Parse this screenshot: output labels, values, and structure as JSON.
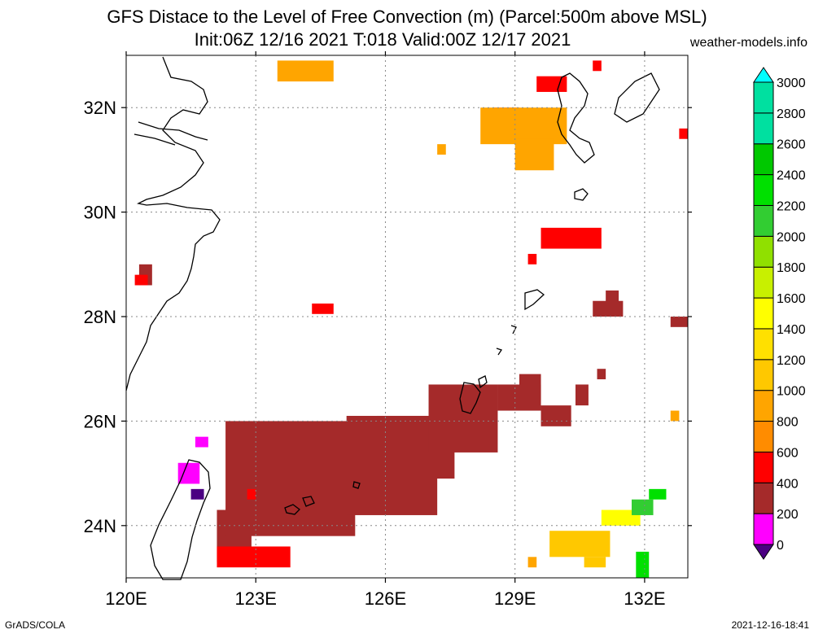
{
  "header": {
    "title": "GFS Distace to the Level of Free Convection (m) (Parcel:500m above MSL)",
    "subtitle": "Init:06Z 12/16 2021 T:018 Valid:00Z 12/17 2021",
    "site": "weather-models.info"
  },
  "footer": {
    "left": "GrADS/COLA",
    "right": "2021-12-16-18:41"
  },
  "map": {
    "lon_range": [
      120,
      133
    ],
    "lat_range": [
      23,
      33
    ],
    "lon_ticks": [
      {
        "value": 120,
        "label": "120E"
      },
      {
        "value": 123,
        "label": "123E"
      },
      {
        "value": 126,
        "label": "126E"
      },
      {
        "value": 129,
        "label": "129E"
      },
      {
        "value": 132,
        "label": "132E"
      }
    ],
    "lat_ticks": [
      {
        "value": 24,
        "label": "24N"
      },
      {
        "value": 26,
        "label": "26N"
      },
      {
        "value": 28,
        "label": "28N"
      },
      {
        "value": 30,
        "label": "30N"
      },
      {
        "value": 32,
        "label": "32N"
      }
    ],
    "grid": true
  },
  "colorbar": {
    "levels": [
      {
        "label": "0",
        "color": "#4b0082"
      },
      {
        "label": "200",
        "color": "#ff00ff"
      },
      {
        "label": "400",
        "color": "#a52a2a"
      },
      {
        "label": "600",
        "color": "#ff0000"
      },
      {
        "label": "800",
        "color": "#ff8c00"
      },
      {
        "label": "1000",
        "color": "#ffa500"
      },
      {
        "label": "1200",
        "color": "#ffc800"
      },
      {
        "label": "1400",
        "color": "#ffe000"
      },
      {
        "label": "1600",
        "color": "#ffff00"
      },
      {
        "label": "1800",
        "color": "#c8f000"
      },
      {
        "label": "2000",
        "color": "#90e000"
      },
      {
        "label": "2200",
        "color": "#32cd32"
      },
      {
        "label": "2400",
        "color": "#00e000"
      },
      {
        "label": "2600",
        "color": "#00c800"
      },
      {
        "label": "2800",
        "color": "#00e0a0"
      },
      {
        "label": "3000",
        "color": "#00ffff"
      }
    ]
  },
  "field_regions": [
    {
      "level": "400",
      "lon": [
        122.1,
        122.9
      ],
      "lat": [
        23.3,
        24.3
      ]
    },
    {
      "level": "400",
      "lon": [
        122.3,
        125.3
      ],
      "lat": [
        23.8,
        26.0
      ]
    },
    {
      "level": "400",
      "lon": [
        125.1,
        127.2
      ],
      "lat": [
        24.2,
        26.1
      ]
    },
    {
      "level": "400",
      "lon": [
        125.8,
        127.6
      ],
      "lat": [
        24.9,
        26.1
      ]
    },
    {
      "level": "400",
      "lon": [
        127.0,
        128.6
      ],
      "lat": [
        25.4,
        26.7
      ]
    },
    {
      "level": "400",
      "lon": [
        128.6,
        129.6
      ],
      "lat": [
        26.2,
        26.7
      ]
    },
    {
      "level": "400",
      "lon": [
        129.1,
        129.6
      ],
      "lat": [
        26.4,
        26.9
      ]
    },
    {
      "level": "400",
      "lon": [
        129.6,
        130.3
      ],
      "lat": [
        25.9,
        26.3
      ]
    },
    {
      "level": "400",
      "lon": [
        130.4,
        130.7
      ],
      "lat": [
        26.3,
        26.7
      ]
    },
    {
      "level": "400",
      "lon": [
        130.9,
        131.1
      ],
      "lat": [
        26.8,
        27.0
      ]
    },
    {
      "level": "400",
      "lon": [
        130.8,
        131.5
      ],
      "lat": [
        28.0,
        28.3
      ]
    },
    {
      "level": "400",
      "lon": [
        131.1,
        131.4
      ],
      "lat": [
        28.2,
        28.5
      ]
    },
    {
      "level": "400",
      "lon": [
        132.6,
        133.0
      ],
      "lat": [
        27.8,
        28.0
      ]
    },
    {
      "level": "400",
      "lon": [
        120.3,
        120.6
      ],
      "lat": [
        28.6,
        29.0
      ]
    },
    {
      "level": "600",
      "lon": [
        120.2,
        120.5
      ],
      "lat": [
        28.6,
        28.8
      ]
    },
    {
      "level": "600",
      "lon": [
        124.3,
        124.8
      ],
      "lat": [
        28.05,
        28.25
      ]
    },
    {
      "level": "600",
      "lon": [
        129.3,
        129.5
      ],
      "lat": [
        29.0,
        29.2
      ]
    },
    {
      "level": "600",
      "lon": [
        129.6,
        131.0
      ],
      "lat": [
        29.3,
        29.7
      ]
    },
    {
      "level": "600",
      "lon": [
        122.1,
        123.8
      ],
      "lat": [
        23.2,
        23.6
      ]
    },
    {
      "level": "600",
      "lon": [
        122.8,
        123.0
      ],
      "lat": [
        24.5,
        24.7
      ]
    },
    {
      "level": "600",
      "lon": [
        128.5,
        129.1
      ],
      "lat": [
        31.8,
        32.0
      ]
    },
    {
      "level": "600",
      "lon": [
        129.5,
        130.2
      ],
      "lat": [
        32.3,
        32.6
      ]
    },
    {
      "level": "600",
      "lon": [
        130.8,
        131.0
      ],
      "lat": [
        32.7,
        32.9
      ]
    },
    {
      "level": "600",
      "lon": [
        132.8,
        133.0
      ],
      "lat": [
        31.4,
        31.6
      ]
    },
    {
      "level": "1000",
      "lon": [
        128.2,
        130.2
      ],
      "lat": [
        31.3,
        32.0
      ]
    },
    {
      "level": "1000",
      "lon": [
        129.0,
        129.9
      ],
      "lat": [
        30.8,
        31.4
      ]
    },
    {
      "level": "1000",
      "lon": [
        123.5,
        124.8
      ],
      "lat": [
        32.5,
        32.9
      ]
    },
    {
      "level": "1000",
      "lon": [
        127.2,
        127.4
      ],
      "lat": [
        31.1,
        31.3
      ]
    },
    {
      "level": "1000",
      "lon": [
        129.3,
        129.5
      ],
      "lat": [
        23.2,
        23.4
      ]
    },
    {
      "level": "1000",
      "lon": [
        132.6,
        132.8
      ],
      "lat": [
        26.0,
        26.2
      ]
    },
    {
      "level": "1200",
      "lon": [
        129.8,
        131.2
      ],
      "lat": [
        23.4,
        23.9
      ]
    },
    {
      "level": "1200",
      "lon": [
        130.6,
        131.1
      ],
      "lat": [
        23.2,
        23.4
      ]
    },
    {
      "level": "1600",
      "lon": [
        131.0,
        131.9
      ],
      "lat": [
        24.0,
        24.3
      ]
    },
    {
      "level": "2200",
      "lon": [
        131.7,
        132.2
      ],
      "lat": [
        24.2,
        24.5
      ]
    },
    {
      "level": "2400",
      "lon": [
        132.1,
        132.5
      ],
      "lat": [
        24.5,
        24.7
      ]
    },
    {
      "level": "2400",
      "lon": [
        131.8,
        132.1
      ],
      "lat": [
        23.0,
        23.5
      ]
    },
    {
      "level": "200",
      "lon": [
        121.2,
        121.7
      ],
      "lat": [
        24.8,
        25.2
      ]
    },
    {
      "level": "200",
      "lon": [
        121.6,
        121.9
      ],
      "lat": [
        25.5,
        25.7
      ]
    },
    {
      "level": "0",
      "lon": [
        121.5,
        121.8
      ],
      "lat": [
        24.5,
        24.7
      ]
    }
  ]
}
